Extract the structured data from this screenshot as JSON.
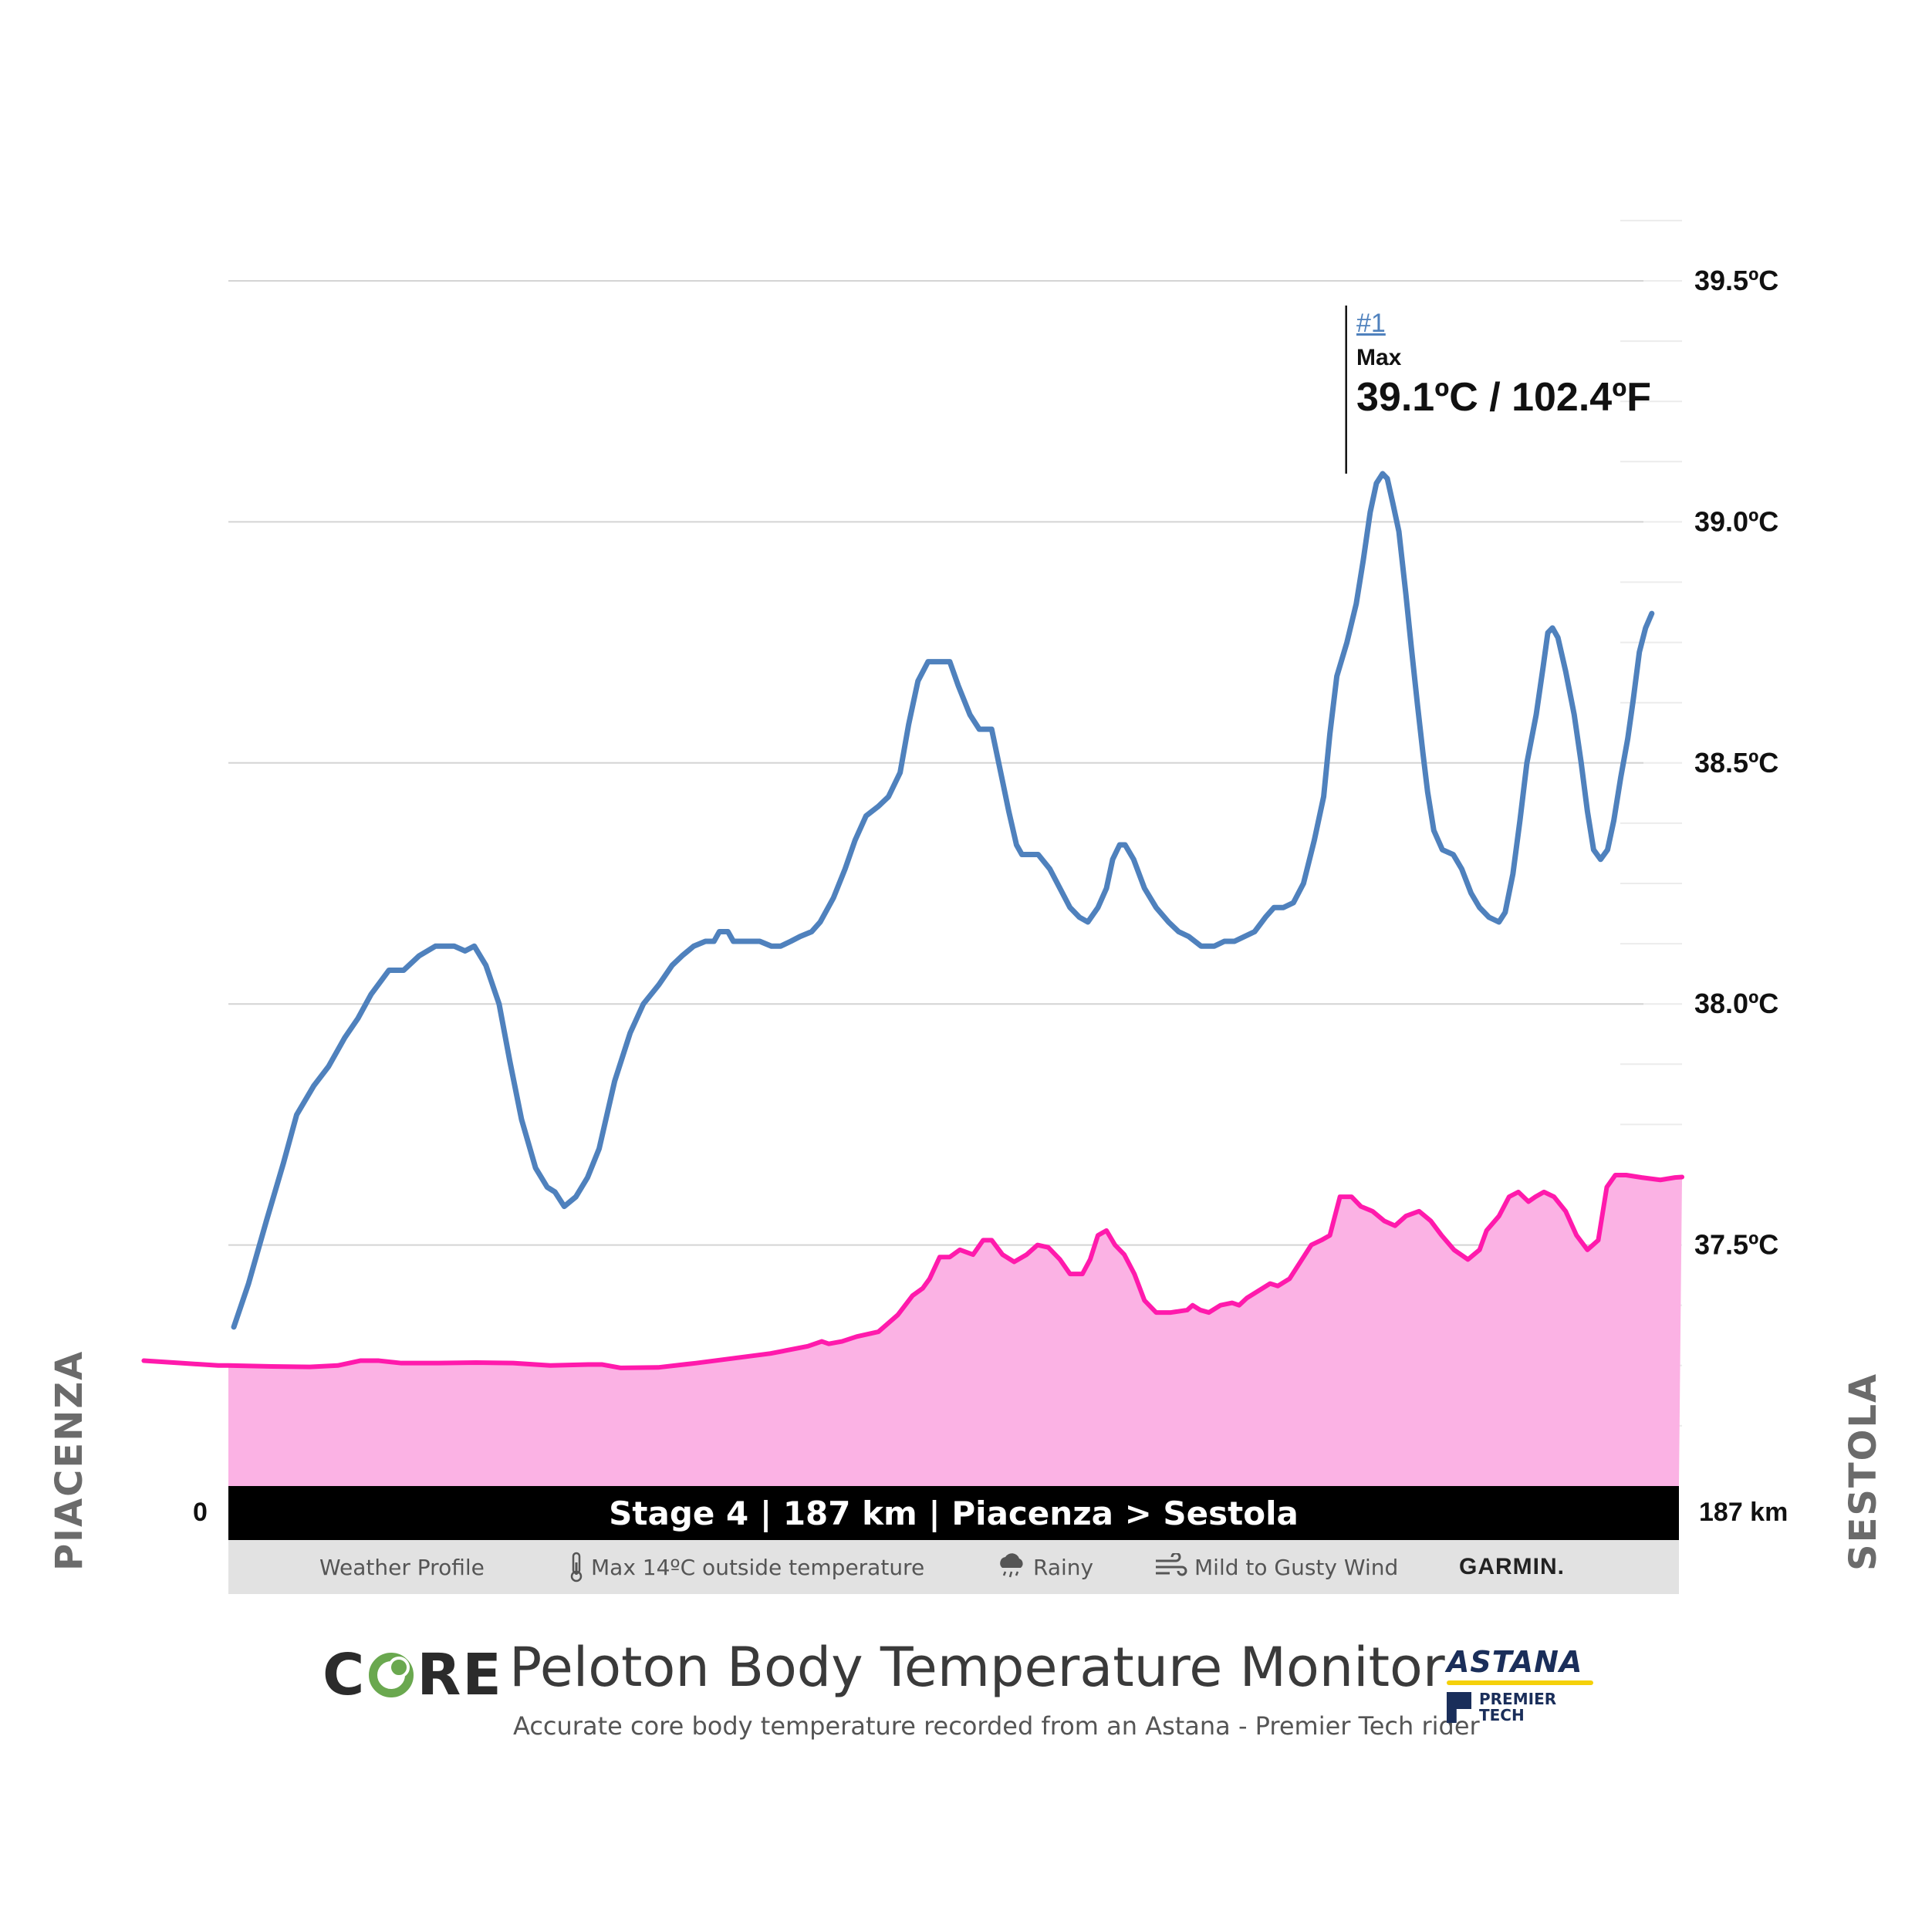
{
  "chart_data": {
    "type": "line",
    "title": "Peloton Body Temperature Monitor",
    "subtitle": "Accurate core body temperature recorded from an Astana - Premier Tech rider",
    "xlabel": "",
    "ylabel": "",
    "x_range_km": [
      0,
      187
    ],
    "ylim": [
      37.0,
      39.5
    ],
    "y_ticks": [
      37.5,
      38.0,
      38.5,
      39.0,
      39.5
    ],
    "y_tick_labels": [
      "37.5ºC",
      "38.0ºC",
      "38.5ºC",
      "39.0ºC",
      "39.5ºC"
    ],
    "grid": true,
    "series": [
      {
        "role": "core-temperature",
        "color": "#4f81bd",
        "points": [
          [
            0.7,
            37.33
          ],
          [
            2.6,
            37.42
          ],
          [
            4.9,
            37.55
          ],
          [
            7.1,
            37.67
          ],
          [
            8.8,
            37.77
          ],
          [
            11.0,
            37.83
          ],
          [
            12.9,
            37.87
          ],
          [
            15.0,
            37.93
          ],
          [
            16.7,
            37.97
          ],
          [
            18.4,
            38.02
          ],
          [
            20.7,
            38.07
          ],
          [
            22.6,
            38.07
          ],
          [
            24.6,
            38.1
          ],
          [
            26.7,
            38.12
          ],
          [
            29.1,
            38.12
          ],
          [
            30.5,
            38.11
          ],
          [
            31.7,
            38.12
          ],
          [
            33.2,
            38.08
          ],
          [
            34.9,
            38.0
          ],
          [
            36.3,
            37.88
          ],
          [
            37.8,
            37.76
          ],
          [
            39.6,
            37.66
          ],
          [
            41.1,
            37.62
          ],
          [
            42.1,
            37.61
          ],
          [
            43.3,
            37.58
          ],
          [
            44.8,
            37.6
          ],
          [
            46.3,
            37.64
          ],
          [
            47.8,
            37.7
          ],
          [
            49.8,
            37.84
          ],
          [
            51.8,
            37.94
          ],
          [
            53.5,
            38.0
          ],
          [
            55.5,
            38.04
          ],
          [
            57.2,
            38.08
          ],
          [
            58.5,
            38.1
          ],
          [
            60.0,
            38.12
          ],
          [
            61.5,
            38.13
          ],
          [
            62.6,
            38.13
          ],
          [
            63.3,
            38.15
          ],
          [
            64.4,
            38.15
          ],
          [
            65.1,
            38.13
          ],
          [
            66.4,
            38.13
          ],
          [
            68.5,
            38.13
          ],
          [
            70.0,
            38.12
          ],
          [
            71.2,
            38.12
          ],
          [
            72.5,
            38.13
          ],
          [
            73.7,
            38.14
          ],
          [
            75.2,
            38.15
          ],
          [
            76.3,
            38.17
          ],
          [
            78.0,
            38.22
          ],
          [
            79.5,
            38.28
          ],
          [
            80.8,
            38.34
          ],
          [
            82.2,
            38.39
          ],
          [
            83.8,
            38.41
          ],
          [
            85.1,
            38.43
          ],
          [
            86.6,
            38.48
          ],
          [
            87.7,
            38.58
          ],
          [
            88.9,
            38.67
          ],
          [
            90.2,
            38.71
          ],
          [
            91.7,
            38.71
          ],
          [
            93.0,
            38.71
          ],
          [
            94.1,
            38.66
          ],
          [
            95.6,
            38.6
          ],
          [
            96.8,
            38.57
          ],
          [
            98.4,
            38.57
          ],
          [
            99.7,
            38.47
          ],
          [
            100.6,
            38.4
          ],
          [
            101.6,
            38.33
          ],
          [
            102.3,
            38.31
          ],
          [
            104.4,
            38.31
          ],
          [
            105.9,
            38.28
          ],
          [
            107.2,
            38.24
          ],
          [
            108.5,
            38.2
          ],
          [
            109.7,
            38.18
          ],
          [
            110.8,
            38.17
          ],
          [
            112.1,
            38.2
          ],
          [
            113.2,
            38.24
          ],
          [
            114.0,
            38.3
          ],
          [
            114.9,
            38.33
          ],
          [
            115.6,
            38.33
          ],
          [
            116.7,
            38.3
          ],
          [
            118.1,
            38.24
          ],
          [
            119.6,
            38.2
          ],
          [
            121.2,
            38.17
          ],
          [
            122.5,
            38.15
          ],
          [
            123.8,
            38.14
          ],
          [
            125.4,
            38.12
          ],
          [
            127.1,
            38.12
          ],
          [
            128.4,
            38.13
          ],
          [
            129.7,
            38.13
          ],
          [
            131.0,
            38.14
          ],
          [
            132.3,
            38.15
          ],
          [
            133.7,
            38.18
          ],
          [
            134.8,
            38.2
          ],
          [
            136.0,
            38.2
          ],
          [
            137.3,
            38.21
          ],
          [
            138.6,
            38.25
          ],
          [
            140.0,
            38.34
          ],
          [
            141.2,
            38.43
          ],
          [
            142.0,
            38.56
          ],
          [
            142.9,
            38.68
          ],
          [
            144.2,
            38.75
          ],
          [
            145.4,
            38.83
          ],
          [
            146.3,
            38.92
          ],
          [
            147.2,
            39.02
          ],
          [
            148.0,
            39.08
          ],
          [
            148.8,
            39.1
          ],
          [
            149.4,
            39.09
          ],
          [
            150.1,
            39.04
          ],
          [
            150.9,
            38.98
          ],
          [
            151.8,
            38.85
          ],
          [
            152.5,
            38.74
          ],
          [
            153.3,
            38.62
          ],
          [
            154.0,
            38.52
          ],
          [
            154.6,
            38.44
          ],
          [
            155.4,
            38.36
          ],
          [
            156.5,
            38.32
          ],
          [
            157.9,
            38.31
          ],
          [
            159.0,
            38.28
          ],
          [
            160.2,
            38.23
          ],
          [
            161.3,
            38.2
          ],
          [
            162.5,
            38.18
          ],
          [
            163.8,
            38.17
          ],
          [
            164.6,
            38.19
          ],
          [
            165.6,
            38.27
          ],
          [
            166.5,
            38.38
          ],
          [
            167.4,
            38.5
          ],
          [
            168.6,
            38.6
          ],
          [
            169.5,
            38.7
          ],
          [
            170.1,
            38.77
          ],
          [
            170.7,
            38.78
          ],
          [
            171.4,
            38.76
          ],
          [
            172.4,
            38.69
          ],
          [
            173.5,
            38.6
          ],
          [
            174.4,
            38.5
          ],
          [
            175.2,
            38.4
          ],
          [
            176.0,
            38.32
          ],
          [
            176.9,
            38.3
          ],
          [
            177.8,
            38.32
          ],
          [
            178.6,
            38.38
          ],
          [
            179.5,
            38.47
          ],
          [
            180.4,
            38.55
          ],
          [
            181.1,
            38.63
          ],
          [
            181.9,
            38.73
          ],
          [
            182.7,
            38.78
          ],
          [
            183.5,
            38.81
          ]
        ]
      },
      {
        "role": "elevation-profile",
        "color": "#ff1aac",
        "fill": "#fbb2e4",
        "points": [
          [
            -10.9,
            37.26
          ],
          [
            -6.1,
            37.255
          ],
          [
            -1.3,
            37.25
          ],
          [
            0.0,
            37.25
          ],
          [
            5.6,
            37.248
          ],
          [
            10.5,
            37.247
          ],
          [
            14.1,
            37.25
          ],
          [
            17.0,
            37.26
          ],
          [
            19.4,
            37.26
          ],
          [
            22.3,
            37.255
          ],
          [
            27.1,
            37.255
          ],
          [
            31.9,
            37.256
          ],
          [
            36.7,
            37.255
          ],
          [
            41.5,
            37.25
          ],
          [
            46.4,
            37.252
          ],
          [
            48.2,
            37.252
          ],
          [
            50.6,
            37.245
          ],
          [
            55.4,
            37.246
          ],
          [
            60.3,
            37.255
          ],
          [
            65.1,
            37.265
          ],
          [
            69.9,
            37.275
          ],
          [
            74.7,
            37.29
          ],
          [
            76.5,
            37.3
          ],
          [
            77.4,
            37.295
          ],
          [
            79.1,
            37.3
          ],
          [
            81.0,
            37.31
          ],
          [
            83.8,
            37.32
          ],
          [
            86.3,
            37.355
          ],
          [
            88.2,
            37.395
          ],
          [
            89.5,
            37.41
          ],
          [
            90.4,
            37.43
          ],
          [
            91.7,
            37.475
          ],
          [
            93.0,
            37.475
          ],
          [
            94.3,
            37.49
          ],
          [
            96.0,
            37.48
          ],
          [
            97.3,
            37.51
          ],
          [
            98.4,
            37.51
          ],
          [
            99.8,
            37.48
          ],
          [
            101.3,
            37.465
          ],
          [
            102.9,
            37.48
          ],
          [
            104.3,
            37.5
          ],
          [
            105.7,
            37.495
          ],
          [
            107.2,
            37.47
          ],
          [
            108.5,
            37.44
          ],
          [
            110.1,
            37.44
          ],
          [
            111.1,
            37.47
          ],
          [
            112.1,
            37.52
          ],
          [
            113.2,
            37.53
          ],
          [
            114.3,
            37.5
          ],
          [
            115.5,
            37.48
          ],
          [
            116.8,
            37.44
          ],
          [
            118.1,
            37.385
          ],
          [
            119.6,
            37.36
          ],
          [
            121.5,
            37.36
          ],
          [
            123.6,
            37.365
          ],
          [
            124.3,
            37.375
          ],
          [
            125.3,
            37.365
          ],
          [
            126.4,
            37.36
          ],
          [
            127.9,
            37.375
          ],
          [
            129.4,
            37.38
          ],
          [
            130.3,
            37.375
          ],
          [
            131.3,
            37.39
          ],
          [
            133.3,
            37.41
          ],
          [
            134.3,
            37.42
          ],
          [
            135.3,
            37.415
          ],
          [
            136.8,
            37.43
          ],
          [
            138.0,
            37.46
          ],
          [
            139.6,
            37.5
          ],
          [
            140.9,
            37.51
          ],
          [
            142.0,
            37.52
          ],
          [
            143.3,
            37.6
          ],
          [
            144.8,
            37.6
          ],
          [
            146.0,
            37.58
          ],
          [
            147.5,
            37.57
          ],
          [
            149.0,
            37.55
          ],
          [
            150.4,
            37.54
          ],
          [
            151.8,
            37.56
          ],
          [
            153.5,
            37.57
          ],
          [
            155.0,
            37.55
          ],
          [
            156.4,
            37.52
          ],
          [
            158.0,
            37.49
          ],
          [
            159.8,
            37.47
          ],
          [
            161.3,
            37.49
          ],
          [
            162.2,
            37.53
          ],
          [
            163.8,
            37.56
          ],
          [
            165.1,
            37.6
          ],
          [
            166.3,
            37.61
          ],
          [
            167.6,
            37.59
          ],
          [
            168.5,
            37.6
          ],
          [
            169.6,
            37.61
          ],
          [
            170.9,
            37.6
          ],
          [
            172.4,
            37.57
          ],
          [
            173.8,
            37.52
          ],
          [
            175.2,
            37.49
          ],
          [
            176.6,
            37.51
          ],
          [
            177.7,
            37.62
          ],
          [
            178.8,
            37.645
          ],
          [
            180.2,
            37.645
          ],
          [
            182.2,
            37.64
          ],
          [
            184.6,
            37.635
          ],
          [
            186.5,
            37.64
          ],
          [
            187.4,
            37.641
          ]
        ]
      }
    ],
    "annotation": {
      "x_km": 144.1,
      "y": 39.1,
      "rank": "#1",
      "label": "Max",
      "value_text": "39.1ºC / 102.4ºF"
    }
  },
  "route": {
    "start_city": "PIACENZA",
    "end_city": "SESTOLA",
    "start_km_label": "0",
    "end_km_label": "187 km",
    "stage_banner": "Stage 4 | 187 km | Piacenza > Sestola"
  },
  "weather": {
    "profile_label": "Weather Profile",
    "temp_label": "Max 14ºC outside temperature",
    "rain_label": "Rainy",
    "wind_label": "Mild to Gusty Wind",
    "sponsor": "GARMIN.",
    "temp_icon": "thermometer-icon",
    "rain_icon": "rain-cloud-icon",
    "wind_icon": "wind-icon"
  },
  "branding": {
    "core_logo_pre": "C",
    "core_logo_post": "RE",
    "title": "Peloton Body Temperature Monitor",
    "subtitle": "Accurate core body temperature recorded from an Astana - Premier Tech rider",
    "team_logo_word": "ASTANA",
    "team_logo_sub_1": "PREMIER",
    "team_logo_sub_2": "TECH",
    "accent_green": "#6aa84f",
    "team_navy": "#1a2e5a",
    "team_yellow": "#f5d10a"
  }
}
